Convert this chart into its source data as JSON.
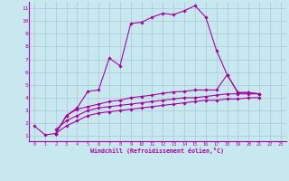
{
  "x_values": [
    0,
    1,
    2,
    3,
    4,
    5,
    6,
    7,
    8,
    9,
    10,
    11,
    12,
    13,
    14,
    15,
    16,
    17,
    18,
    19,
    20,
    21,
    22,
    23
  ],
  "line1": [
    1.8,
    1.1,
    1.2,
    2.6,
    3.2,
    4.5,
    4.6,
    7.1,
    6.5,
    9.8,
    9.9,
    10.3,
    10.6,
    10.5,
    10.8,
    11.2,
    10.3,
    7.7,
    5.8,
    4.4,
    4.4,
    4.3,
    null,
    null
  ],
  "line2": [
    null,
    null,
    1.2,
    2.6,
    3.1,
    3.3,
    3.5,
    3.7,
    3.8,
    4.0,
    4.1,
    4.2,
    4.35,
    4.45,
    4.5,
    4.6,
    4.6,
    4.6,
    5.8,
    4.4,
    4.4,
    4.3,
    null,
    null
  ],
  "line3": [
    null,
    null,
    1.5,
    2.2,
    2.6,
    3.0,
    3.2,
    3.3,
    3.4,
    3.5,
    3.6,
    3.7,
    3.8,
    3.9,
    4.0,
    4.0,
    4.1,
    4.2,
    4.3,
    4.3,
    4.3,
    4.3,
    null,
    null
  ],
  "line4": [
    null,
    null,
    1.2,
    1.8,
    2.2,
    2.6,
    2.8,
    2.9,
    3.0,
    3.1,
    3.2,
    3.3,
    3.4,
    3.5,
    3.6,
    3.7,
    3.8,
    3.8,
    3.9,
    3.9,
    4.0,
    4.0,
    null,
    null
  ],
  "line_color": "#aa00aa",
  "bg_color": "#c8e8f0",
  "grid_color": "#a8c8d8",
  "xlabel": "Windchill (Refroidissement éolien,°C)",
  "ylim": [
    0.6,
    11.5
  ],
  "xlim": [
    -0.5,
    23.5
  ],
  "yticks": [
    1,
    2,
    3,
    4,
    5,
    6,
    7,
    8,
    9,
    10,
    11
  ],
  "xticks": [
    0,
    1,
    2,
    3,
    4,
    5,
    6,
    7,
    8,
    9,
    10,
    11,
    12,
    13,
    14,
    15,
    16,
    17,
    18,
    19,
    20,
    21,
    22,
    23
  ]
}
